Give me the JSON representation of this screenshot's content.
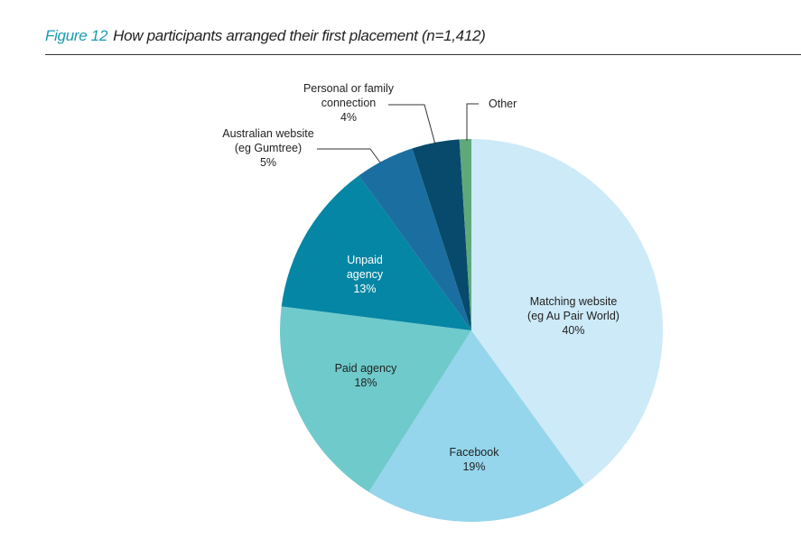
{
  "figure_label": "Figure 12",
  "chart_data": {
    "type": "pie",
    "title": "How participants arranged their first placement (n=1,412)",
    "start": "12 o'clock, clockwise",
    "slices": [
      {
        "label": [
          "Matching website",
          "(eg Au Pair World)"
        ],
        "value": 40,
        "value_label": "40%",
        "color": "#cdeaf8",
        "label_color": "#222222"
      },
      {
        "label": [
          "Facebook"
        ],
        "value": 19,
        "value_label": "19%",
        "color": "#95d6ec",
        "label_color": "#222222"
      },
      {
        "label": [
          "Paid agency"
        ],
        "value": 18,
        "value_label": "18%",
        "color": "#6fcacb",
        "label_color": "#222222"
      },
      {
        "label": [
          "Unpaid",
          "agency"
        ],
        "value": 13,
        "value_label": "13%",
        "color": "#0586a4",
        "label_color": "#ffffff"
      },
      {
        "label": [
          "Australian website",
          "(eg Gumtree)"
        ],
        "value": 5,
        "value_label": "5%",
        "color": "#1a6fa0",
        "label_color": "#222222"
      },
      {
        "label": [
          "Personal or family",
          "connection"
        ],
        "value": 4,
        "value_label": "4%",
        "color": "#074a6b",
        "label_color": "#222222"
      },
      {
        "label": [
          "Other"
        ],
        "value": 1,
        "value_label": "",
        "color": "#5fa87a",
        "label_color": "#222222"
      }
    ]
  }
}
